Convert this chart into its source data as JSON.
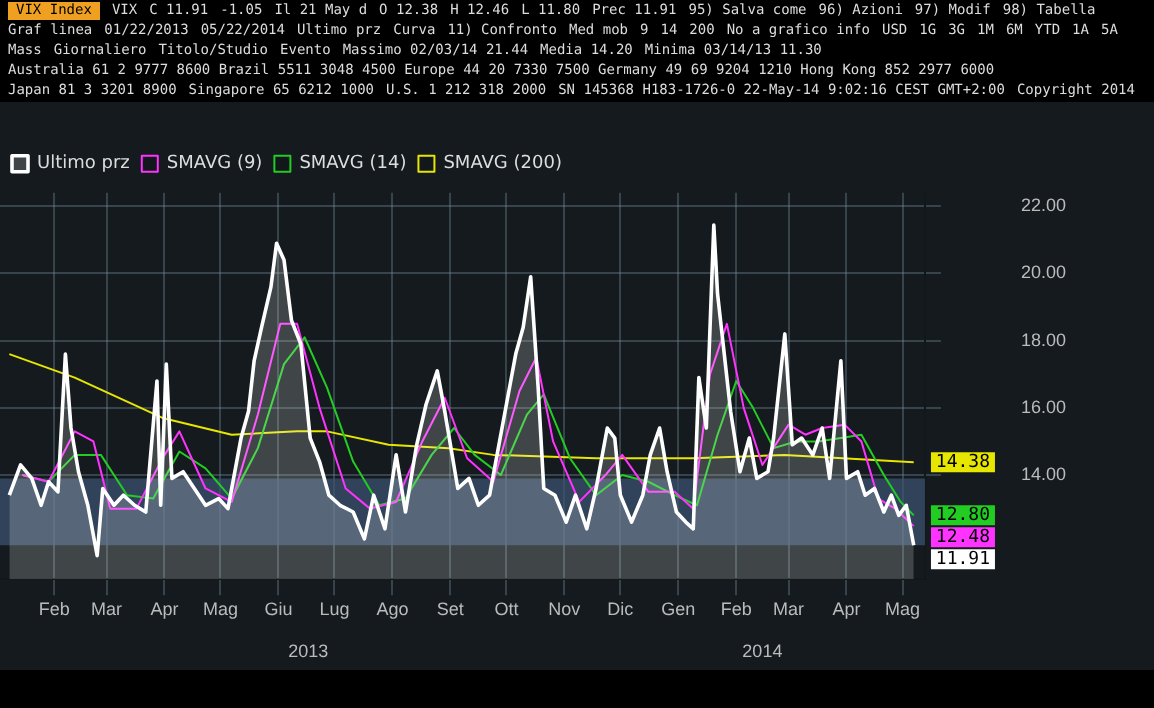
{
  "chart_data": {
    "type": "line",
    "title": "VIX Index",
    "annotations": [
      "VIX",
      "C 11.91",
      "-1.05",
      "Il 21 May d",
      "O 12.38",
      "H 12.46",
      "L 11.80",
      "Prec 11.91",
      "95) Salva come",
      "96) Azioni",
      "97) Modif",
      "98) Tabella",
      "Graf linea",
      "01/22/2013",
      "05/22/2014",
      "Ultimo prz",
      "Curva",
      "11) Confronto",
      "Med mob",
      "9",
      "14",
      "200",
      "No a grafico info",
      "USD",
      "1G",
      "3G",
      "1M",
      "6M",
      "YTD",
      "1A",
      "5A",
      "Mass",
      "Giornaliero",
      "Titolo/Studio",
      "Evento",
      "Massimo 02/03/14 21.44",
      "Media 14.20",
      "Minima 03/14/13 11.30",
      "Australia 61 2 9777 8600 Brazil 5511 3048 4500 Europe 44 20 7330 7500 Germany 49 69 9204 1210 Hong Kong 852 2977 6000",
      "Japan 81 3 3201 8900",
      "Singapore 65 6212 1000",
      "U.S. 1 212 318 2000",
      "SN 145368 H183-1726-0 22-May-14 9:02:16 CEST GMT+2:00",
      "Copyright 2014"
    ],
    "xlim": [
      "2013-01-17",
      "2014-05-27"
    ],
    "xticks": [
      {
        "value": "2013-02-15",
        "label": "Feb"
      },
      {
        "value": "2013-03-15",
        "label": "Mar"
      },
      {
        "value": "2013-04-15",
        "label": "Apr"
      },
      {
        "value": "2013-05-15",
        "label": "Mag"
      },
      {
        "value": "2013-06-15",
        "label": "Giu"
      },
      {
        "value": "2013-07-15",
        "label": "Lug"
      },
      {
        "value": "2013-08-15",
        "label": "Ago"
      },
      {
        "value": "2013-09-15",
        "label": "Set"
      },
      {
        "value": "2013-10-15",
        "label": "Ott"
      },
      {
        "value": "2013-11-15",
        "label": "Nov"
      },
      {
        "value": "2013-12-15",
        "label": "Dic"
      },
      {
        "value": "2014-01-15",
        "label": "Gen"
      },
      {
        "value": "2014-02-15",
        "label": "Feb"
      },
      {
        "value": "2014-03-15",
        "label": "Mar"
      },
      {
        "value": "2014-04-15",
        "label": "Apr"
      },
      {
        "value": "2014-05-15",
        "label": "Mag"
      }
    ],
    "x2lim": [
      "2013-01-17",
      "2014-05-27"
    ],
    "x2ticks": [
      {
        "value": "2013-07-01",
        "label": "2013"
      },
      {
        "value": "2014-03-01",
        "label": "2014"
      }
    ],
    "ylim": [
      10.9,
      22.4
    ],
    "yticks": [
      {
        "value": 14,
        "label": "14.00"
      },
      {
        "value": 16,
        "label": "16.00"
      },
      {
        "value": 18,
        "label": "18.00"
      },
      {
        "value": 20,
        "label": "20.00"
      },
      {
        "value": 22,
        "label": "22.00"
      }
    ],
    "grid": true,
    "legend": "top left",
    "bands": [
      {
        "axis": "y",
        "from": 11.91,
        "to": 13.9,
        "color": "#3d5573"
      }
    ],
    "series": [
      {
        "name": "Ultimo prz",
        "type": "area",
        "color": "#ffffff",
        "x": [
          "2013-01-22",
          "2013-01-28",
          "2013-02-03",
          "2013-02-08",
          "2013-02-12",
          "2013-02-17",
          "2013-02-21",
          "2013-02-24",
          "2013-02-28",
          "2013-03-05",
          "2013-03-10",
          "2013-03-13",
          "2013-03-19",
          "2013-03-24",
          "2013-03-30",
          "2013-04-05",
          "2013-04-11",
          "2013-04-13",
          "2013-04-16",
          "2013-04-19",
          "2013-04-25",
          "2013-05-01",
          "2013-05-07",
          "2013-05-14",
          "2013-05-19",
          "2013-05-26",
          "2013-05-30",
          "2013-06-02",
          "2013-06-06",
          "2013-06-11",
          "2013-06-14",
          "2013-06-18",
          "2013-06-22",
          "2013-06-27",
          "2013-07-02",
          "2013-07-07",
          "2013-07-12",
          "2013-07-18",
          "2013-07-25",
          "2013-07-31",
          "2013-08-05",
          "2013-08-11",
          "2013-08-17",
          "2013-08-22",
          "2013-08-28",
          "2013-09-02",
          "2013-09-08",
          "2013-09-12",
          "2013-09-19",
          "2013-09-25",
          "2013-09-30",
          "2013-10-06",
          "2013-10-10",
          "2013-10-15",
          "2013-10-20",
          "2013-10-24",
          "2013-10-28",
          "2013-11-01",
          "2013-11-04",
          "2013-11-10",
          "2013-11-16",
          "2013-11-21",
          "2013-11-27",
          "2013-12-02",
          "2013-12-08",
          "2013-12-12",
          "2013-12-15",
          "2013-12-21",
          "2013-12-27",
          "2013-12-31",
          "2014-01-05",
          "2014-01-09",
          "2014-01-14",
          "2014-01-19",
          "2014-01-23",
          "2014-01-26",
          "2014-01-30",
          "2014-02-03",
          "2014-02-05",
          "2014-02-08",
          "2014-02-12",
          "2014-02-17",
          "2014-02-22",
          "2014-02-26",
          "2014-03-04",
          "2014-03-07",
          "2014-03-13",
          "2014-03-17",
          "2014-03-22",
          "2014-03-28",
          "2014-04-02",
          "2014-04-06",
          "2014-04-12",
          "2014-04-15",
          "2014-04-21",
          "2014-04-25",
          "2014-04-30",
          "2014-05-05",
          "2014-05-09",
          "2014-05-13",
          "2014-05-17",
          "2014-05-21"
        ],
        "values": [
          13.4,
          14.3,
          13.9,
          13.1,
          13.8,
          13.5,
          17.6,
          15.4,
          14.1,
          13.1,
          11.6,
          13.6,
          13.1,
          13.4,
          13.1,
          12.9,
          16.8,
          13.1,
          17.3,
          13.9,
          14.1,
          13.6,
          13.1,
          13.3,
          13.0,
          15.1,
          15.9,
          17.4,
          18.4,
          19.6,
          20.9,
          20.4,
          18.6,
          17.9,
          15.1,
          14.4,
          13.4,
          13.1,
          12.9,
          12.1,
          13.4,
          12.4,
          14.6,
          12.9,
          14.9,
          16.1,
          17.1,
          15.9,
          13.6,
          13.9,
          13.1,
          13.4,
          14.6,
          16.1,
          17.6,
          18.4,
          19.9,
          16.6,
          13.6,
          13.4,
          12.6,
          13.4,
          12.4,
          13.6,
          15.4,
          15.1,
          13.4,
          12.6,
          13.4,
          14.6,
          15.4,
          14.1,
          12.9,
          12.6,
          12.4,
          16.9,
          15.4,
          21.44,
          19.4,
          17.9,
          15.9,
          14.1,
          15.1,
          13.9,
          14.1,
          15.1,
          18.2,
          14.9,
          15.1,
          14.6,
          15.4,
          13.9,
          17.4,
          13.9,
          14.1,
          13.4,
          13.6,
          12.9,
          13.4,
          12.8,
          13.1,
          11.91
        ],
        "value_labels": [
          null,
          null,
          null,
          null,
          null,
          null,
          null,
          null,
          null,
          null,
          null,
          null,
          null,
          null,
          null,
          null,
          null,
          null,
          null,
          null,
          null,
          null,
          null,
          null,
          null,
          null,
          null,
          null,
          null,
          null,
          null,
          null,
          null,
          null,
          null,
          null,
          null,
          null,
          null,
          null,
          null,
          null,
          null,
          null,
          null,
          null,
          null,
          null,
          null,
          null,
          null,
          null,
          null,
          null,
          null,
          null,
          null,
          null,
          null,
          null,
          null,
          null,
          null,
          null,
          null,
          null,
          null,
          null,
          null,
          null,
          null,
          null,
          null,
          null,
          null,
          null,
          null,
          null,
          null,
          null,
          null,
          null,
          null,
          null,
          null,
          null,
          null,
          null,
          null,
          null,
          null,
          null,
          null,
          null,
          null,
          null,
          null,
          null,
          null,
          null,
          null,
          "11.91"
        ]
      },
      {
        "name": "SMAVG (9)",
        "color": "#ff33ff",
        "x": [
          "2013-01-29",
          "2013-02-12",
          "2013-02-26",
          "2013-03-08",
          "2013-03-17",
          "2013-03-31",
          "2013-04-14",
          "2013-04-23",
          "2013-05-07",
          "2013-05-21",
          "2013-06-04",
          "2013-06-16",
          "2013-06-25",
          "2013-07-07",
          "2013-07-21",
          "2013-08-03",
          "2013-08-17",
          "2013-08-31",
          "2013-09-12",
          "2013-09-24",
          "2013-10-08",
          "2013-10-22",
          "2013-10-31",
          "2013-11-09",
          "2013-11-23",
          "2013-12-07",
          "2013-12-16",
          "2013-12-30",
          "2014-01-13",
          "2014-01-23",
          "2014-02-01",
          "2014-02-10",
          "2014-02-19",
          "2014-03-01",
          "2014-03-15",
          "2014-03-24",
          "2014-04-02",
          "2014-04-14",
          "2014-04-23",
          "2014-05-02",
          "2014-05-11",
          "2014-05-21"
        ],
        "values": [
          14.0,
          13.8,
          15.3,
          15.0,
          13.0,
          13.0,
          14.5,
          15.3,
          13.6,
          13.2,
          15.8,
          18.5,
          18.5,
          16.0,
          13.6,
          13.0,
          13.2,
          15.0,
          16.3,
          14.5,
          13.8,
          16.5,
          17.5,
          15.0,
          13.2,
          14.0,
          14.6,
          13.5,
          13.5,
          13.0,
          17.0,
          18.5,
          16.0,
          14.3,
          15.5,
          15.2,
          15.4,
          15.5,
          15.0,
          13.3,
          13.0,
          12.48
        ],
        "value_labels": [
          null,
          null,
          null,
          null,
          null,
          null,
          null,
          null,
          null,
          null,
          null,
          null,
          null,
          null,
          null,
          null,
          null,
          null,
          null,
          null,
          null,
          null,
          null,
          null,
          null,
          null,
          null,
          null,
          null,
          null,
          null,
          null,
          null,
          null,
          null,
          null,
          null,
          null,
          null,
          null,
          null,
          "12.48"
        ]
      },
      {
        "name": "SMAVG (14)",
        "color": "#22cc22",
        "x": [
          "2013-01-29",
          "2013-02-12",
          "2013-02-26",
          "2013-03-12",
          "2013-03-26",
          "2013-04-09",
          "2013-04-23",
          "2013-05-07",
          "2013-05-21",
          "2013-06-04",
          "2013-06-18",
          "2013-06-29",
          "2013-07-11",
          "2013-07-25",
          "2013-08-08",
          "2013-08-22",
          "2013-09-05",
          "2013-09-17",
          "2013-09-28",
          "2013-10-12",
          "2013-10-26",
          "2013-11-04",
          "2013-11-18",
          "2013-12-02",
          "2013-12-16",
          "2013-12-30",
          "2014-01-13",
          "2014-01-25",
          "2014-02-05",
          "2014-02-15",
          "2014-02-24",
          "2014-03-07",
          "2014-03-19",
          "2014-03-31",
          "2014-04-12",
          "2014-04-23",
          "2014-05-05",
          "2014-05-14",
          "2014-05-21"
        ],
        "values": [
          14.0,
          13.8,
          14.6,
          14.6,
          13.4,
          13.3,
          14.7,
          14.2,
          13.3,
          14.8,
          17.3,
          18.1,
          16.6,
          14.4,
          13.1,
          13.3,
          14.6,
          15.4,
          14.6,
          14.0,
          15.8,
          16.4,
          14.5,
          13.4,
          14.0,
          13.8,
          13.4,
          13.1,
          15.2,
          16.8,
          16.0,
          14.8,
          15.0,
          15.0,
          15.1,
          15.2,
          14.0,
          13.2,
          12.8
        ],
        "value_labels": [
          null,
          null,
          null,
          null,
          null,
          null,
          null,
          null,
          null,
          null,
          null,
          null,
          null,
          null,
          null,
          null,
          null,
          null,
          null,
          null,
          null,
          null,
          null,
          null,
          null,
          null,
          null,
          null,
          null,
          null,
          null,
          null,
          null,
          null,
          null,
          null,
          null,
          null,
          "12.80"
        ]
      },
      {
        "name": "SMAVG (200)",
        "color": "#e6e600",
        "x": [
          "2013-01-22",
          "2013-02-26",
          "2013-04-14",
          "2013-05-21",
          "2013-06-25",
          "2013-07-11",
          "2013-08-13",
          "2013-09-14",
          "2013-10-08",
          "2013-12-02",
          "2014-01-23",
          "2014-03-13",
          "2014-05-21"
        ],
        "values": [
          17.6,
          16.9,
          15.7,
          15.2,
          15.3,
          15.3,
          14.9,
          14.8,
          14.6,
          14.5,
          14.5,
          14.6,
          14.38
        ],
        "value_labels": [
          null,
          null,
          null,
          null,
          null,
          null,
          null,
          null,
          null,
          null,
          null,
          null,
          "14.38"
        ]
      }
    ]
  }
}
